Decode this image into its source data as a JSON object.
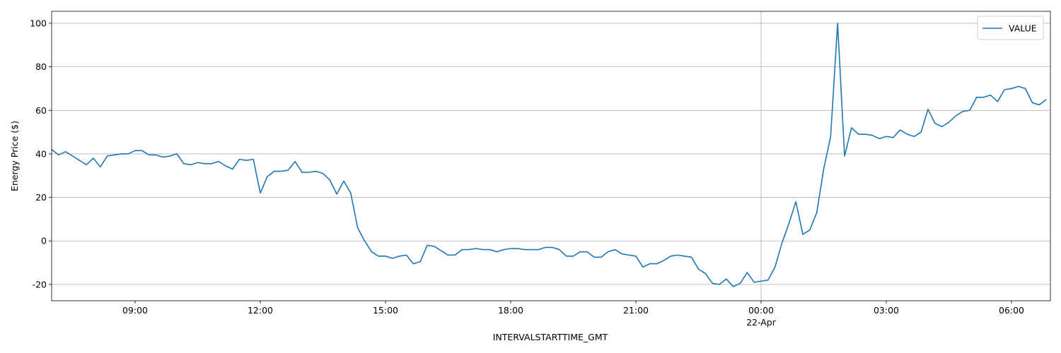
{
  "chart_data": {
    "type": "line",
    "xlabel": "INTERVALSTARTTIME_GMT",
    "ylabel": "Energy Price ($)",
    "x": [
      "07:00",
      "07:10",
      "07:20",
      "07:30",
      "07:40",
      "07:50",
      "08:00",
      "08:10",
      "08:20",
      "08:30",
      "08:40",
      "08:50",
      "09:00",
      "09:10",
      "09:20",
      "09:30",
      "09:40",
      "09:50",
      "10:00",
      "10:10",
      "10:20",
      "10:30",
      "10:40",
      "10:50",
      "11:00",
      "11:10",
      "11:20",
      "11:30",
      "11:40",
      "11:50",
      "12:00",
      "12:10",
      "12:20",
      "12:30",
      "12:40",
      "12:50",
      "13:00",
      "13:10",
      "13:20",
      "13:30",
      "13:40",
      "13:50",
      "14:00",
      "14:10",
      "14:20",
      "14:30",
      "14:40",
      "14:50",
      "15:00",
      "15:10",
      "15:20",
      "15:30",
      "15:40",
      "15:50",
      "16:00",
      "16:10",
      "16:20",
      "16:30",
      "16:40",
      "16:50",
      "17:00",
      "17:10",
      "17:20",
      "17:30",
      "17:40",
      "17:50",
      "18:00",
      "18:10",
      "18:20",
      "18:30",
      "18:40",
      "18:50",
      "19:00",
      "19:10",
      "19:20",
      "19:30",
      "19:40",
      "19:50",
      "20:00",
      "20:10",
      "20:20",
      "20:30",
      "20:40",
      "20:50",
      "21:00",
      "21:10",
      "21:20",
      "21:30",
      "21:40",
      "21:50",
      "22:00",
      "22:10",
      "22:20",
      "22:30",
      "22:40",
      "22:50",
      "23:00",
      "23:10",
      "23:20",
      "23:30",
      "23:40",
      "23:50",
      "00:00",
      "00:10",
      "00:20",
      "00:30",
      "00:40",
      "00:50",
      "01:00",
      "01:10",
      "01:20",
      "01:30",
      "01:40",
      "01:50",
      "02:00",
      "02:10",
      "02:20",
      "02:30",
      "02:40",
      "02:50",
      "03:00",
      "03:10",
      "03:20",
      "03:30",
      "03:40",
      "03:50",
      "04:00",
      "04:10",
      "04:20",
      "04:30",
      "04:40",
      "04:50",
      "05:00",
      "05:10",
      "05:20",
      "05:30",
      "05:40",
      "05:50",
      "06:00",
      "06:10",
      "06:20",
      "06:30",
      "06:40",
      "06:50"
    ],
    "series": [
      {
        "name": "VALUE",
        "color": "#1f77b4",
        "values": [
          42,
          39.5,
          41,
          39,
          37,
          35,
          38,
          34,
          39,
          39.5,
          40,
          40,
          41.5,
          41.5,
          39.5,
          39.5,
          38.5,
          39,
          40,
          35.5,
          35,
          36,
          35.5,
          35.5,
          36.5,
          34.5,
          33,
          37.5,
          37,
          37.5,
          22,
          29.5,
          32,
          32,
          32.5,
          36.5,
          31.5,
          31.5,
          32,
          31,
          28,
          21.5,
          27.5,
          22,
          6,
          0,
          -5,
          -7,
          -7,
          -8,
          -7,
          -6.5,
          -10.5,
          -9.5,
          -2,
          -2.5,
          -4.5,
          -6.5,
          -6.5,
          -4,
          -4,
          -3.5,
          -4,
          -4,
          -5,
          -4,
          -3.5,
          -3.5,
          -4,
          -4,
          -4,
          -3,
          -3,
          -4,
          -7,
          -7,
          -5,
          -5,
          -7.5,
          -7.5,
          -5,
          -4,
          -6,
          -6.5,
          -7,
          -12,
          -10.5,
          -10.5,
          -9,
          -7,
          -6.5,
          -7,
          -7.5,
          -13,
          -15,
          -19.5,
          -20,
          -17.5,
          -21,
          -19.5,
          -14.5,
          -19,
          -18.5,
          -18,
          -12,
          -1,
          8,
          18,
          3,
          5,
          13,
          33,
          48,
          100,
          39,
          52,
          49,
          49,
          48.5,
          47,
          48,
          47.5,
          51,
          49,
          48,
          50,
          60.5,
          54,
          52.5,
          54.5,
          57.5,
          59.5,
          60,
          66,
          66,
          67,
          64,
          69.5,
          70,
          71,
          70,
          63.5,
          62.5,
          65
        ]
      }
    ],
    "xticks": [
      "09:00",
      "12:00",
      "15:00",
      "18:00",
      "21:00",
      {
        "value": "00:00",
        "label": "00:00",
        "date_label": "22-Apr"
      },
      "03:00",
      "06:00"
    ],
    "ylim": [
      -27.5,
      105.5
    ],
    "yticks": [
      -20,
      0,
      20,
      40,
      60,
      80,
      100
    ],
    "grid": true,
    "legend": "upper right"
  }
}
